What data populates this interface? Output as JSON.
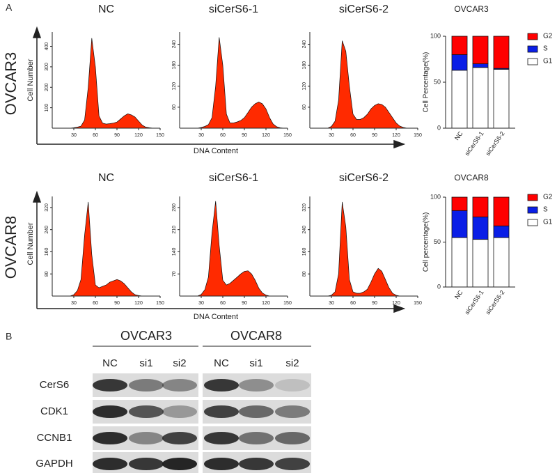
{
  "panel_a": {
    "label": "A",
    "rows": [
      "OVCAR3",
      "OVCAR8"
    ],
    "y_label": "Cell Number",
    "x_label": "DNA  Content"
  },
  "chart_data": [
    {
      "type": "area",
      "title": "NC",
      "x": [
        0,
        5,
        10,
        15,
        20,
        25,
        30,
        35,
        40,
        45,
        50,
        55,
        60,
        65,
        70,
        75,
        80,
        85,
        90,
        95,
        100,
        105,
        110,
        115,
        120,
        125,
        130,
        135,
        140,
        145,
        150
      ],
      "values": [
        0,
        0,
        0,
        0,
        0,
        0,
        2,
        5,
        10,
        40,
        200,
        440,
        300,
        60,
        25,
        20,
        22,
        25,
        30,
        45,
        60,
        70,
        65,
        55,
        35,
        15,
        5,
        2,
        0,
        0,
        0
      ],
      "color": "#ff2a00",
      "xlim": [
        0,
        150
      ],
      "ylim": [
        0,
        470
      ],
      "xticks": [
        30,
        60,
        90,
        120,
        150
      ],
      "yticks": [
        100,
        200,
        300,
        400
      ]
    },
    {
      "type": "area",
      "title": "siCerS6-1",
      "x": [
        0,
        5,
        10,
        15,
        20,
        25,
        30,
        35,
        40,
        45,
        50,
        55,
        60,
        65,
        70,
        75,
        80,
        85,
        90,
        95,
        100,
        105,
        110,
        115,
        120,
        125,
        130,
        135,
        140,
        145,
        150
      ],
      "values": [
        0,
        0,
        0,
        0,
        0,
        0,
        2,
        5,
        10,
        30,
        120,
        260,
        180,
        40,
        15,
        15,
        18,
        22,
        30,
        45,
        60,
        70,
        75,
        70,
        55,
        30,
        12,
        4,
        1,
        0,
        0
      ],
      "color": "#ff2a00",
      "xlim": [
        0,
        150
      ],
      "ylim": [
        0,
        275
      ],
      "xticks": [
        30,
        60,
        90,
        120,
        150
      ],
      "yticks": [
        60,
        120,
        180,
        240
      ]
    },
    {
      "type": "area",
      "title": "siCerS6-2",
      "x": [
        0,
        5,
        10,
        15,
        20,
        25,
        30,
        35,
        40,
        45,
        50,
        55,
        60,
        65,
        70,
        75,
        80,
        85,
        90,
        95,
        100,
        105,
        110,
        115,
        120,
        125,
        130,
        135,
        140,
        145,
        150
      ],
      "values": [
        0,
        0,
        0,
        0,
        0,
        0,
        5,
        20,
        80,
        250,
        220,
        120,
        40,
        25,
        25,
        30,
        40,
        55,
        65,
        70,
        68,
        60,
        45,
        30,
        15,
        6,
        2,
        0,
        0,
        0,
        0
      ],
      "color": "#ff2a00",
      "xlim": [
        0,
        150
      ],
      "ylim": [
        0,
        275
      ],
      "xticks": [
        30,
        60,
        90,
        120,
        150
      ],
      "yticks": [
        60,
        120,
        180,
        240
      ]
    },
    {
      "type": "area",
      "title": "NC",
      "x": [
        0,
        5,
        10,
        15,
        20,
        25,
        30,
        35,
        40,
        45,
        50,
        55,
        60,
        65,
        70,
        75,
        80,
        85,
        90,
        95,
        100,
        105,
        110,
        115,
        120,
        125,
        130,
        135,
        140,
        145,
        150
      ],
      "values": [
        0,
        0,
        0,
        0,
        0,
        0,
        5,
        20,
        60,
        220,
        340,
        150,
        40,
        30,
        35,
        40,
        50,
        55,
        60,
        55,
        45,
        30,
        15,
        5,
        2,
        0,
        0,
        0,
        0,
        0,
        0
      ],
      "color": "#ff2a00",
      "xlim": [
        0,
        150
      ],
      "ylim": [
        0,
        360
      ],
      "xticks": [
        30,
        60,
        90,
        120,
        150
      ],
      "yticks": [
        80,
        160,
        240,
        320
      ]
    },
    {
      "type": "area",
      "title": "siCerS6-1",
      "x": [
        0,
        5,
        10,
        15,
        20,
        25,
        30,
        35,
        40,
        45,
        50,
        55,
        60,
        65,
        70,
        75,
        80,
        85,
        90,
        95,
        100,
        105,
        110,
        115,
        120,
        125,
        130,
        135,
        140,
        145,
        150
      ],
      "values": [
        0,
        0,
        0,
        0,
        0,
        0,
        5,
        20,
        60,
        200,
        300,
        160,
        50,
        35,
        40,
        50,
        60,
        70,
        78,
        80,
        70,
        50,
        25,
        10,
        3,
        0,
        0,
        0,
        0,
        0,
        0
      ],
      "color": "#ff2a00",
      "xlim": [
        0,
        150
      ],
      "ylim": [
        0,
        315
      ],
      "xticks": [
        30,
        60,
        90,
        120,
        150
      ],
      "yticks": [
        70,
        140,
        210,
        280
      ]
    },
    {
      "type": "area",
      "title": "siCerS6-2",
      "x": [
        0,
        5,
        10,
        15,
        20,
        25,
        30,
        35,
        40,
        45,
        50,
        55,
        60,
        65,
        70,
        75,
        80,
        85,
        90,
        95,
        100,
        105,
        110,
        115,
        120,
        125,
        130,
        135,
        140,
        145,
        150
      ],
      "values": [
        0,
        0,
        0,
        0,
        0,
        0,
        3,
        15,
        80,
        340,
        250,
        60,
        15,
        10,
        10,
        15,
        25,
        50,
        80,
        100,
        90,
        60,
        30,
        10,
        3,
        0,
        0,
        0,
        0,
        0,
        0
      ],
      "color": "#ff2a00",
      "xlim": [
        0,
        150
      ],
      "ylim": [
        0,
        360
      ],
      "xticks": [
        30,
        60,
        90,
        120,
        150
      ],
      "yticks": [
        80,
        160,
        240,
        320
      ]
    },
    {
      "type": "stacked_bar",
      "title": "OVCAR3",
      "y_label": "Cell Percentage(%)",
      "categories": [
        "NC",
        "siCerS6-1",
        "siCerS6-2"
      ],
      "series": [
        {
          "name": "G1",
          "color": "#ffffff",
          "values": [
            63,
            66,
            64
          ]
        },
        {
          "name": "S",
          "color": "#0a1ee6",
          "values": [
            17,
            4,
            1
          ]
        },
        {
          "name": "G2",
          "color": "#ff0000",
          "values": [
            20,
            30,
            35
          ]
        }
      ],
      "ylim": [
        0,
        100
      ],
      "yticks": [
        0,
        50,
        100
      ],
      "legend": "right"
    },
    {
      "type": "stacked_bar",
      "title": "OVCAR8",
      "y_label": "Cell percentage(%)",
      "categories": [
        "NC",
        "siCerS6-1",
        "siCerS6-2"
      ],
      "series": [
        {
          "name": "G1",
          "color": "#ffffff",
          "values": [
            55,
            53,
            55
          ]
        },
        {
          "name": "S",
          "color": "#0a1ee6",
          "values": [
            30,
            25,
            13
          ]
        },
        {
          "name": "G2",
          "color": "#ff0000",
          "values": [
            15,
            22,
            32
          ]
        }
      ],
      "ylim": [
        0,
        100
      ],
      "yticks": [
        0,
        50,
        100
      ],
      "legend": "right"
    }
  ],
  "panel_b": {
    "label": "B",
    "groups": [
      "OVCAR3",
      "OVCAR8"
    ],
    "lanes": [
      "NC",
      "si1",
      "si2",
      "NC",
      "si1",
      "si2"
    ],
    "proteins": [
      "CerS6",
      "CDK1",
      "CCNB1",
      "GAPDH"
    ]
  }
}
